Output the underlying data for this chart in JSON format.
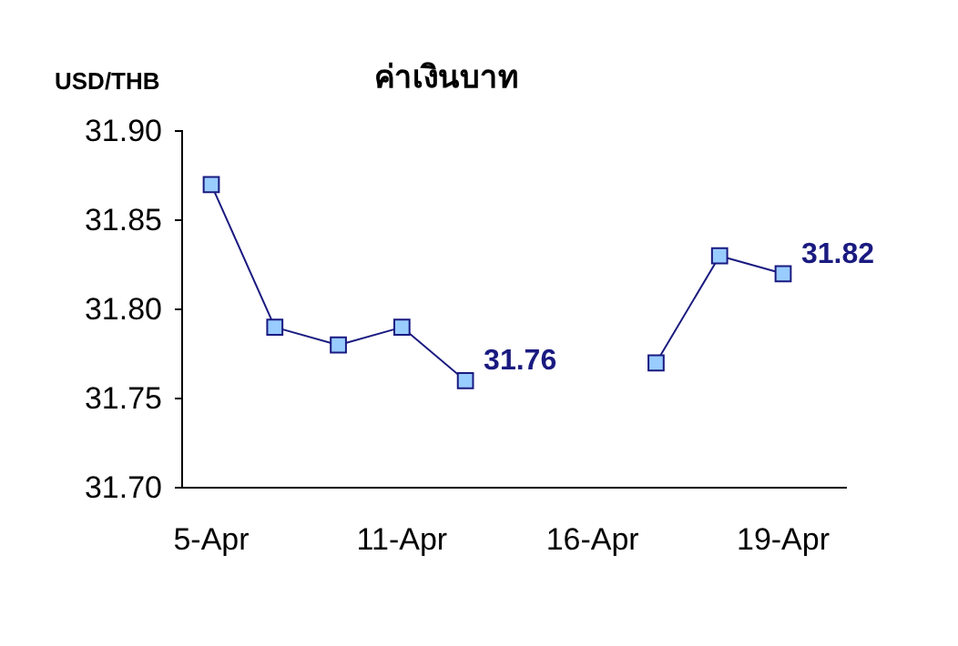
{
  "chart_data": {
    "type": "line",
    "title": "ค่าเงินบาท",
    "ylabel": "USD/THB",
    "categories": [
      "5-Apr",
      null,
      null,
      "11-Apr",
      null,
      null,
      "16-Apr",
      null,
      null,
      "19-Apr"
    ],
    "series": [
      {
        "color": "#1a1a80",
        "values": [
          31.87,
          31.79,
          31.78,
          31.79,
          31.76,
          null,
          null,
          31.77,
          31.83,
          31.82
        ],
        "value_labels": [
          null,
          null,
          null,
          null,
          "31.76",
          null,
          null,
          null,
          null,
          "31.82"
        ]
      }
    ],
    "ylim": [
      31.7,
      31.9
    ],
    "yticks": [
      {
        "value": 31.7,
        "label": "31.70"
      },
      31.75,
      {
        "value": 31.8,
        "label": "31.80"
      },
      31.85,
      {
        "value": 31.9,
        "label": "31.90"
      }
    ],
    "marker": "square",
    "grid": false
  }
}
